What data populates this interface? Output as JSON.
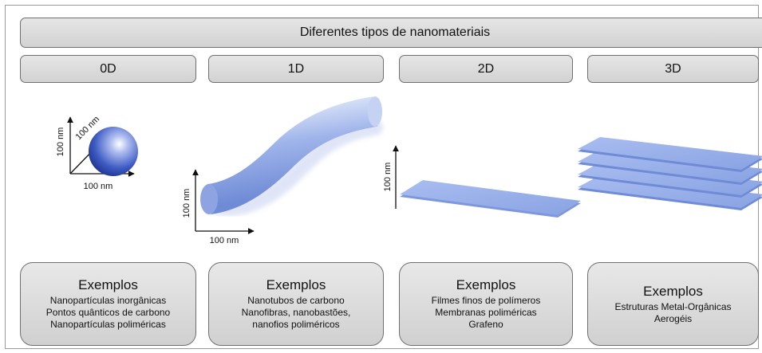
{
  "title": "Diferentes tipos de nanomateriais",
  "dimensions": [
    "0D",
    "1D",
    "2D",
    "3D"
  ],
  "axis_label": "100 nm",
  "cards": [
    {
      "heading": "Exemplos",
      "lines": [
        "Nanopartículas inorgânicas",
        "Pontos quânticos de carbono",
        "Nanopartículas poliméricas"
      ]
    },
    {
      "heading": "Exemplos",
      "lines": [
        "Nanotubos de carbono",
        "Nanofibras, nanobastões,",
        "nanofios poliméricos"
      ]
    },
    {
      "heading": "Exemplos",
      "lines": [
        "Filmes finos de polímeros",
        "Membranas poliméricas",
        "Grafeno"
      ]
    },
    {
      "heading": "Exemplos",
      "lines": [
        "Estruturas Metal-Orgânicas",
        "Aerogéis"
      ]
    }
  ],
  "colors": {
    "material": "#8fa9e6",
    "sphere_dark": "#2b45a8"
  }
}
